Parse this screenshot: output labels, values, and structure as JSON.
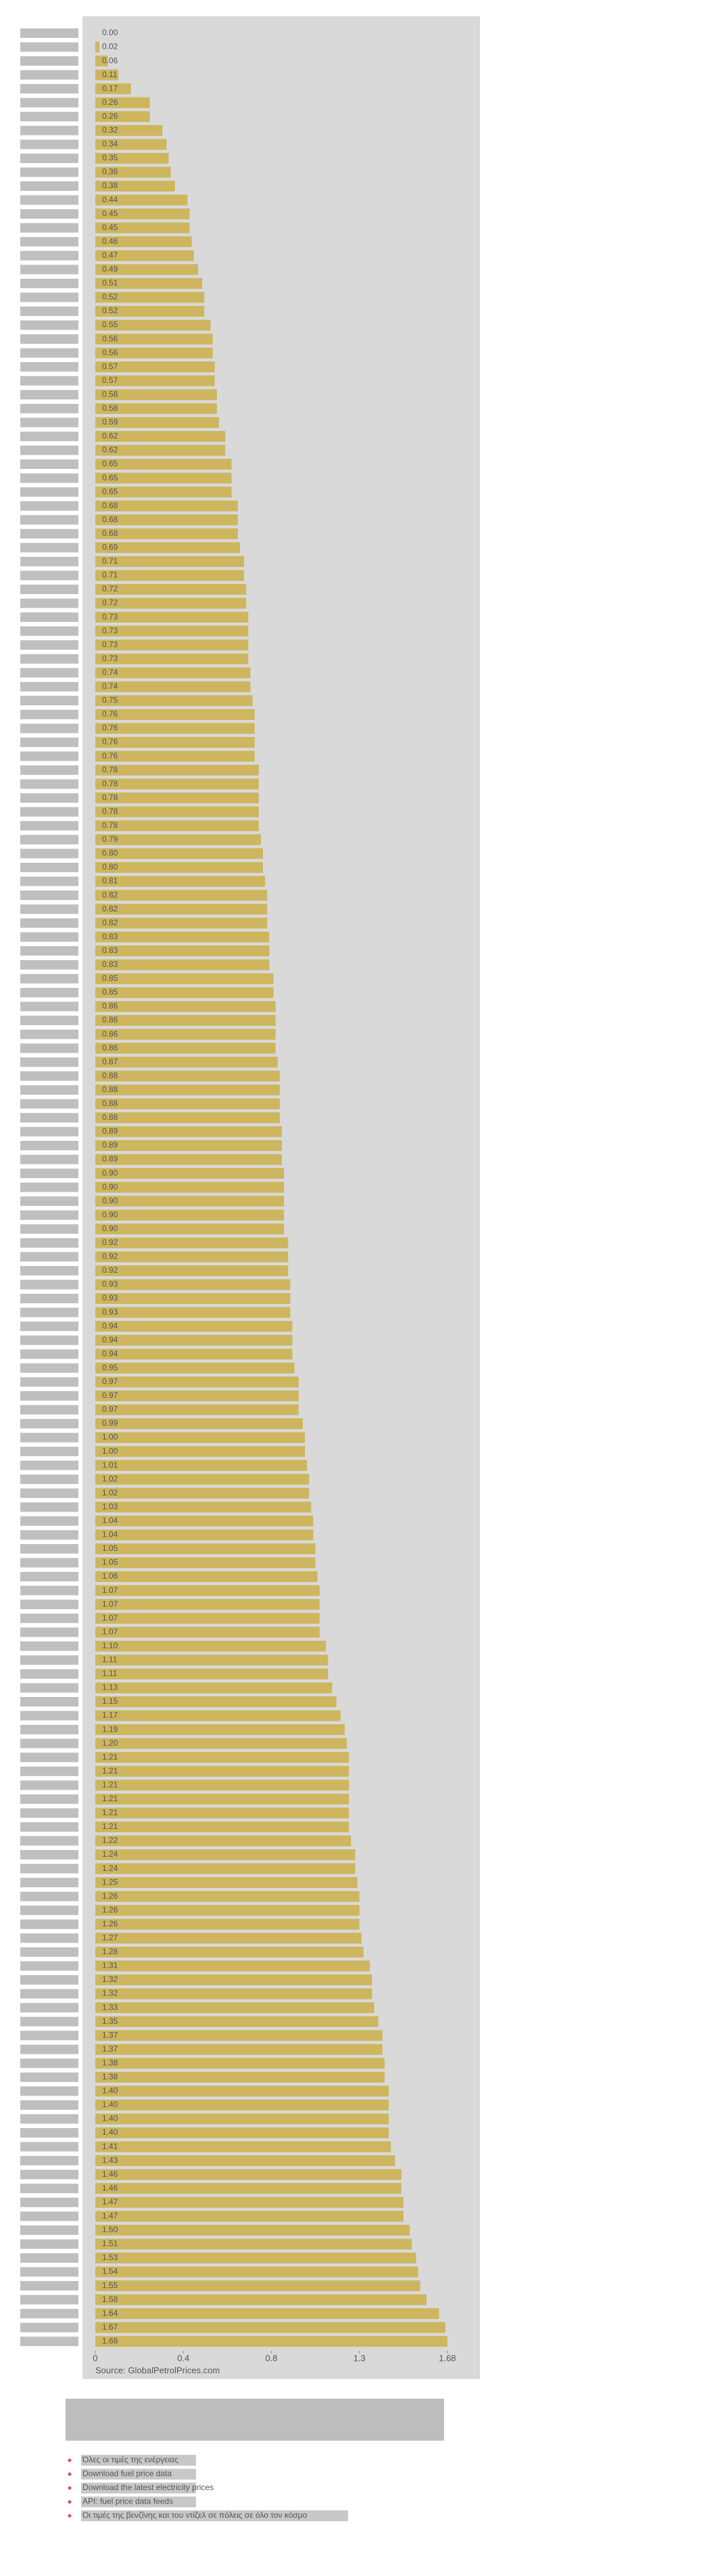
{
  "chart_data": {
    "type": "barh",
    "color": "#cdb65e",
    "categories": [
      null,
      null,
      null,
      null,
      null,
      null,
      null,
      null,
      null,
      null,
      null,
      null,
      null,
      null,
      null,
      null,
      null,
      null,
      null,
      null,
      null,
      null,
      null,
      null,
      null,
      null,
      null,
      null,
      null,
      null,
      null,
      null,
      null,
      null,
      null,
      null,
      null,
      null,
      null,
      null,
      null,
      null,
      null,
      null,
      null,
      null,
      null,
      null,
      null,
      null,
      null,
      null,
      null,
      null,
      null,
      null,
      null,
      null,
      null,
      null,
      null,
      null,
      null,
      null,
      null,
      null,
      null,
      null,
      null,
      null,
      null,
      null,
      null,
      null,
      null,
      null,
      null,
      null,
      null,
      null,
      null,
      null,
      null,
      null,
      null,
      null,
      null,
      null,
      null,
      null,
      null,
      null,
      null,
      null,
      null,
      null,
      null,
      null,
      null,
      null,
      null,
      null,
      null,
      null,
      null,
      null,
      null,
      null,
      null,
      null,
      null,
      null,
      null,
      null,
      null,
      null,
      null,
      null,
      null,
      null,
      null,
      null,
      null,
      null,
      null,
      null,
      null,
      null,
      null,
      null,
      null,
      null,
      null,
      null,
      null,
      null,
      null,
      null,
      null,
      null,
      null,
      null,
      null,
      null,
      null,
      null,
      null,
      null,
      null,
      null,
      null,
      null,
      null,
      null,
      null,
      null,
      null,
      null,
      null,
      null,
      null,
      null,
      null,
      null,
      null,
      null,
      null
    ],
    "values": [
      0.0,
      0.02,
      0.06,
      0.11,
      0.17,
      0.26,
      0.26,
      0.32,
      0.34,
      0.35,
      0.36,
      0.38,
      0.44,
      0.45,
      0.45,
      0.46,
      0.47,
      0.49,
      0.51,
      0.52,
      0.52,
      0.55,
      0.56,
      0.56,
      0.57,
      0.57,
      0.58,
      0.58,
      0.59,
      0.62,
      0.62,
      0.65,
      0.65,
      0.65,
      0.68,
      0.68,
      0.68,
      0.69,
      0.71,
      0.71,
      0.72,
      0.72,
      0.73,
      0.73,
      0.73,
      0.73,
      0.74,
      0.74,
      0.75,
      0.76,
      0.76,
      0.76,
      0.76,
      0.78,
      0.78,
      0.78,
      0.78,
      0.78,
      0.79,
      0.8,
      0.8,
      0.81,
      0.82,
      0.82,
      0.82,
      0.83,
      0.83,
      0.83,
      0.85,
      0.85,
      0.86,
      0.86,
      0.86,
      0.86,
      0.87,
      0.88,
      0.88,
      0.88,
      0.88,
      0.89,
      0.89,
      0.89,
      0.9,
      0.9,
      0.9,
      0.9,
      0.9,
      0.92,
      0.92,
      0.92,
      0.93,
      0.93,
      0.93,
      0.94,
      0.94,
      0.94,
      0.95,
      0.97,
      0.97,
      0.97,
      0.99,
      1.0,
      1.0,
      1.01,
      1.02,
      1.02,
      1.03,
      1.04,
      1.04,
      1.05,
      1.05,
      1.06,
      1.07,
      1.07,
      1.07,
      1.07,
      1.1,
      1.11,
      1.11,
      1.13,
      1.15,
      1.17,
      1.19,
      1.2,
      1.21,
      1.21,
      1.21,
      1.21,
      1.21,
      1.21,
      1.22,
      1.24,
      1.24,
      1.25,
      1.26,
      1.26,
      1.26,
      1.27,
      1.28,
      1.31,
      1.32,
      1.32,
      1.33,
      1.35,
      1.37,
      1.37,
      1.38,
      1.38,
      1.4,
      1.4,
      1.4,
      1.4,
      1.41,
      1.43,
      1.46,
      1.46,
      1.47,
      1.47,
      1.5,
      1.51,
      1.53,
      1.54,
      1.55,
      1.58,
      1.64,
      1.67,
      1.68
    ],
    "value_labels": [
      "0.00",
      "0.02",
      "0.06",
      "0.11",
      "0.17",
      "0.26",
      "0.26",
      "0.32",
      "0.34",
      "0.35",
      "0.36",
      "0.38",
      "0.44",
      "0.45",
      "0.45",
      "0.46",
      "0.47",
      "0.49",
      "0.51",
      "0.52",
      "0.52",
      "0.55",
      "0.56",
      "0.56",
      "0.57",
      "0.57",
      "0.58",
      "0.58",
      "0.59",
      "0.62",
      "0.62",
      "0.65",
      "0.65",
      "0.65",
      "0.68",
      "0.68",
      "0.68",
      "0.69",
      "0.71",
      "0.71",
      "0.72",
      "0.72",
      "0.73",
      "0.73",
      "0.73",
      "0.73",
      "0.74",
      "0.74",
      "0.75",
      "0.76",
      "0.76",
      "0.76",
      "0.76",
      "0.78",
      "0.78",
      "0.78",
      "0.78",
      "0.78",
      "0.79",
      "0.80",
      "0.80",
      "0.81",
      "0.82",
      "0.82",
      "0.82",
      "0.83",
      "0.83",
      "0.83",
      "0.85",
      "0.85",
      "0.86",
      "0.86",
      "0.86",
      "0.86",
      "0.87",
      "0.88",
      "0.88",
      "0.88",
      "0.88",
      "0.89",
      "0.89",
      "0.89",
      "0.90",
      "0.90",
      "0.90",
      "0.90",
      "0.90",
      "0.92",
      "0.92",
      "0.92",
      "0.93",
      "0.93",
      "0.93",
      "0.94",
      "0.94",
      "0.94",
      "0.95",
      "0.97",
      "0.97",
      "0.97",
      "0.99",
      "1.00",
      "1.00",
      "1.01",
      "1.02",
      "1.02",
      "1.03",
      "1.04",
      "1.04",
      "1.05",
      "1.05",
      "1.06",
      "1.07",
      "1.07",
      "1.07",
      "1.07",
      "1.10",
      "1.11",
      "1.11",
      "1.13",
      "1.15",
      "1.17",
      "1.19",
      "1.20",
      "1.21",
      "1.21",
      "1.21",
      "1.21",
      "1.21",
      "1.21",
      "1.22",
      "1.24",
      "1.24",
      "1.25",
      "1.26",
      "1.26",
      "1.26",
      "1.27",
      "1.28",
      "1.31",
      "1.32",
      "1.32",
      "1.33",
      "1.35",
      "1.37",
      "1.37",
      "1.38",
      "1.38",
      "1.40",
      "1.40",
      "1.40",
      "1.40",
      "1.41",
      "1.43",
      "1.46",
      "1.46",
      "1.47",
      "1.47",
      "1.50",
      "1.51",
      "1.53",
      "1.54",
      "1.55",
      "1.58",
      "1.64",
      "1.67",
      "1.68"
    ],
    "xlim": [
      0,
      1.68
    ],
    "xticks": [
      0,
      {
        "value": 0.42,
        "label": "0.4"
      },
      {
        "value": 0.84,
        "label": "0.8"
      },
      {
        "value": 1.26,
        "label": "1.3"
      },
      1.68
    ],
    "source": "Source: GlobalPetrolPrices.com"
  },
  "links": [
    "Όλες οι τιμές της ενέργειας",
    "Download fuel price data",
    "Download the latest electricity prices",
    "API: fuel price data feeds",
    "Οι τιμές της βενζίνης και του ντίζελ σε πόλεις σε όλο τον κόσμο"
  ]
}
